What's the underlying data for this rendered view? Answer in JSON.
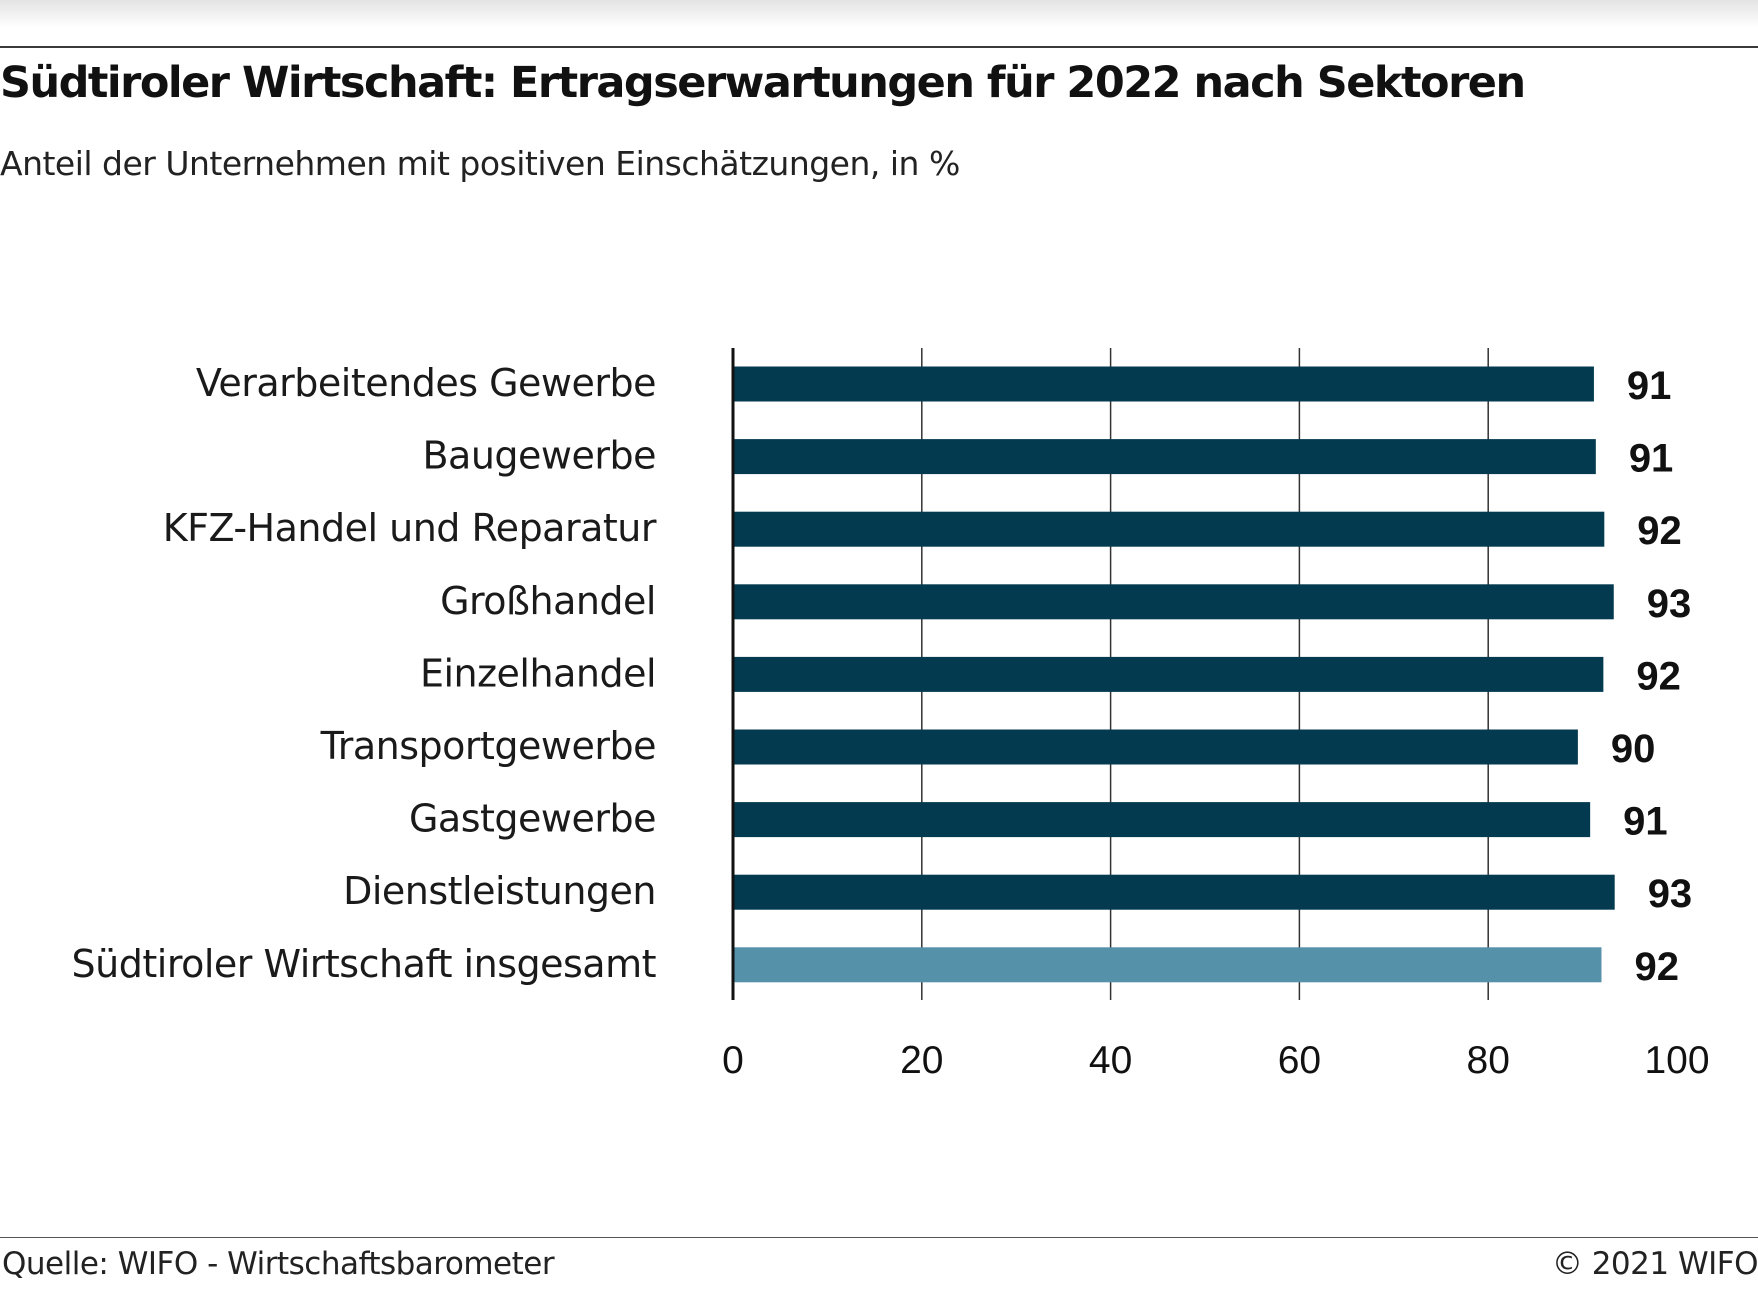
{
  "header": {
    "title": "Südtiroler Wirtschaft: Ertragserwartungen für 2022 nach Sektoren",
    "subtitle": "Anteil der Unternehmen mit positiven Einschätzungen, in %"
  },
  "footer": {
    "source": "Quelle: WIFO - Wirtschaftsbarometer",
    "copyright": "© 2021 WIFO"
  },
  "chart_data": {
    "type": "bar",
    "orientation": "horizontal",
    "title": "Südtiroler Wirtschaft: Ertragserwartungen für 2022 nach Sektoren",
    "subtitle": "Anteil der Unternehmen mit positiven Einschätzungen, in %",
    "categories": [
      "Verarbeitendes Gewerbe",
      "Baugewerbe",
      "KFZ-Handel und Reparatur",
      "Großhandel",
      "Einzelhandel",
      "Transportgewerbe",
      "Gastgewerbe",
      "Dienstleistungen",
      "Südtiroler Wirtschaft insgesamt"
    ],
    "values": [
      91.2,
      91.4,
      92.3,
      93.3,
      92.2,
      89.5,
      90.8,
      93.4,
      92.0
    ],
    "value_labels": [
      "91",
      "91",
      "92",
      "93",
      "92",
      "90",
      "91",
      "93",
      "92"
    ],
    "highlight_index": 8,
    "xlim": [
      0,
      100
    ],
    "xticks": [
      0,
      20,
      40,
      60,
      80,
      100
    ],
    "xtick_labels": [
      "0",
      "20",
      "40",
      "60",
      "80",
      "100"
    ],
    "grid": "vertical",
    "colors": {
      "bar": "#033a4f",
      "highlight": "#5591a9",
      "grid": "#333333",
      "axis": "#111111"
    }
  }
}
